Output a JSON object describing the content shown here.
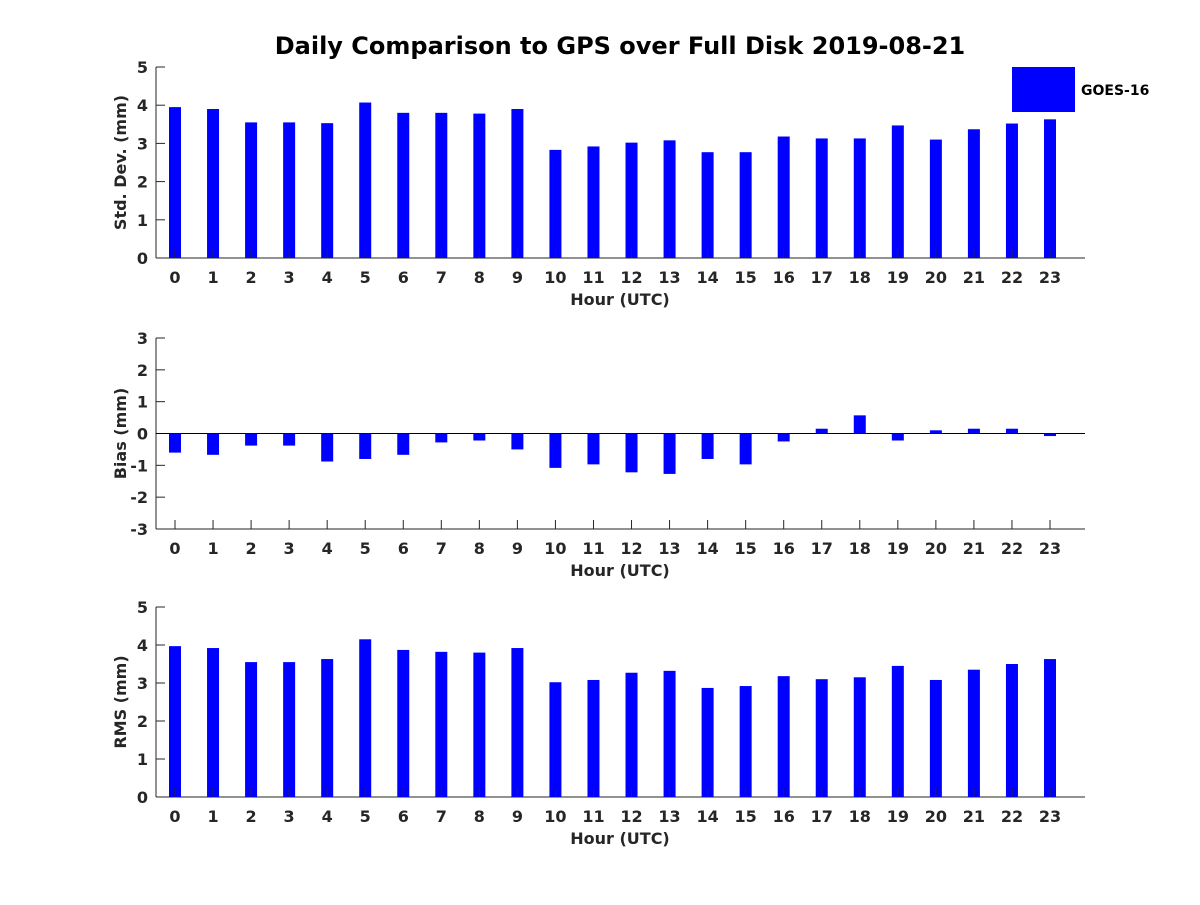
{
  "title": "Daily Comparison to GPS over Full Disk 2019-08-21",
  "legend": {
    "label": "GOES-16",
    "color": "#0000ff",
    "position": "top-right"
  },
  "chart_data": [
    {
      "type": "bar",
      "categories": [
        "0",
        "1",
        "2",
        "3",
        "4",
        "5",
        "6",
        "7",
        "8",
        "9",
        "10",
        "11",
        "12",
        "13",
        "14",
        "15",
        "16",
        "17",
        "18",
        "19",
        "20",
        "21",
        "22",
        "23"
      ],
      "series": [
        {
          "name": "GOES-16",
          "values": [
            3.95,
            3.9,
            3.55,
            3.55,
            3.53,
            4.07,
            3.8,
            3.8,
            3.78,
            3.9,
            2.83,
            2.92,
            3.02,
            3.08,
            2.77,
            2.77,
            3.18,
            3.13,
            3.13,
            3.47,
            3.1,
            3.37,
            3.52,
            3.63
          ]
        }
      ],
      "xlabel": "Hour (UTC)",
      "ylabel": "Std. Dev. (mm)",
      "ylim": [
        0,
        5
      ],
      "yticks": [
        "0",
        "1",
        "2",
        "3",
        "4",
        "5"
      ],
      "color": "#0000ff"
    },
    {
      "type": "bar",
      "categories": [
        "0",
        "1",
        "2",
        "3",
        "4",
        "5",
        "6",
        "7",
        "8",
        "9",
        "10",
        "11",
        "12",
        "13",
        "14",
        "15",
        "16",
        "17",
        "18",
        "19",
        "20",
        "21",
        "22",
        "23"
      ],
      "series": [
        {
          "name": "GOES-16",
          "values": [
            -0.6,
            -0.67,
            -0.38,
            -0.38,
            -0.88,
            -0.8,
            -0.67,
            -0.28,
            -0.22,
            -0.5,
            -1.08,
            -0.97,
            -1.22,
            -1.27,
            -0.8,
            -0.97,
            -0.25,
            0.15,
            0.57,
            -0.22,
            0.1,
            0.15,
            0.15,
            -0.08
          ]
        }
      ],
      "xlabel": "Hour (UTC)",
      "ylabel": "Bias (mm)",
      "ylim": [
        -3,
        3
      ],
      "yticks": [
        "-3",
        "-2",
        "-1",
        "0",
        "1",
        "2",
        "3"
      ],
      "zero_line": true,
      "color": "#0000ff"
    },
    {
      "type": "bar",
      "categories": [
        "0",
        "1",
        "2",
        "3",
        "4",
        "5",
        "6",
        "7",
        "8",
        "9",
        "10",
        "11",
        "12",
        "13",
        "14",
        "15",
        "16",
        "17",
        "18",
        "19",
        "20",
        "21",
        "22",
        "23"
      ],
      "series": [
        {
          "name": "GOES-16",
          "values": [
            3.97,
            3.92,
            3.55,
            3.55,
            3.63,
            4.15,
            3.87,
            3.82,
            3.8,
            3.92,
            3.02,
            3.08,
            3.27,
            3.32,
            2.87,
            2.92,
            3.18,
            3.1,
            3.15,
            3.45,
            3.08,
            3.35,
            3.5,
            3.63
          ]
        }
      ],
      "xlabel": "Hour (UTC)",
      "ylabel": "RMS (mm)",
      "ylim": [
        0,
        5
      ],
      "yticks": [
        "0",
        "1",
        "2",
        "3",
        "4",
        "5"
      ],
      "color": "#0000ff"
    }
  ]
}
